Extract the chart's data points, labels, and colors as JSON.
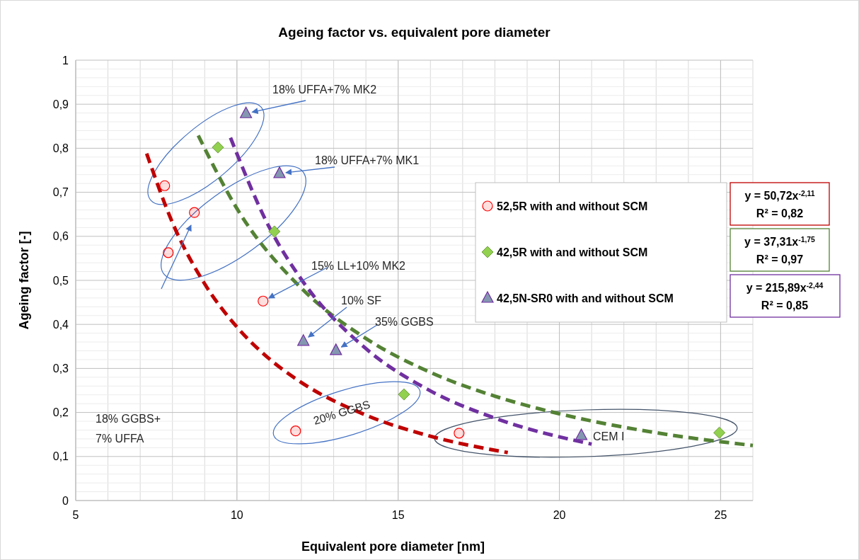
{
  "chart_data": {
    "type": "scatter",
    "title": "Ageing factor vs. equivalent pore diameter",
    "xlabel": "Equivalent pore diameter [nm]",
    "ylabel": "Ageing factor [-]",
    "xlim": [
      5,
      26
    ],
    "xticks": [
      5,
      10,
      15,
      20,
      25
    ],
    "ylim": [
      0,
      1
    ],
    "yticks": [
      0,
      {
        "value": 0.1,
        "label": "0,1"
      },
      {
        "value": 0.2,
        "label": "0,2"
      },
      {
        "value": 0.3,
        "label": "0,3"
      },
      {
        "value": 0.4,
        "label": "0,4"
      },
      {
        "value": 0.5,
        "label": "0,5"
      },
      {
        "value": 0.6,
        "label": "0,6"
      },
      {
        "value": 0.7,
        "label": "0,7"
      },
      {
        "value": 0.8,
        "label": "0,8"
      },
      {
        "value": 0.9,
        "label": "0,9"
      },
      1
    ],
    "grid": true,
    "legend": "right",
    "series": [
      {
        "name": "52,5R with and without SCM",
        "marker": "circle",
        "color": "#ff0000",
        "x": [
          7.76,
          7.87,
          8.68,
          10.81,
          11.82,
          16.89
        ],
        "values": [
          0.715,
          0.563,
          0.654,
          0.453,
          0.158,
          0.153
        ]
      },
      {
        "name": "42,5R with and without SCM",
        "marker": "diamond",
        "color": "#92d050",
        "x": [
          9.41,
          11.16,
          15.18,
          24.96
        ],
        "values": [
          0.802,
          0.611,
          0.241,
          0.154
        ]
      },
      {
        "name": "42,5N-SR0 with and without SCM",
        "marker": "triangle",
        "color": "#8497b0",
        "x": [
          10.28,
          11.32,
          12.06,
          13.07,
          20.68
        ],
        "values": [
          0.879,
          0.743,
          0.362,
          0.341,
          0.148
        ]
      },
      {
        "type": "line",
        "line_style": "dashed",
        "color": "#c00000",
        "x": [
          7.2,
          8,
          9,
          10,
          11,
          12,
          14,
          16,
          18.4
        ],
        "values": [
          0.788,
          0.631,
          0.492,
          0.394,
          0.322,
          0.268,
          0.194,
          0.146,
          0.109
        ]
      },
      {
        "type": "line",
        "line_style": "dashed",
        "color": "#548235",
        "x": [
          8.8,
          10,
          12,
          14,
          16,
          18,
          20,
          23,
          26
        ],
        "values": [
          0.829,
          0.663,
          0.482,
          0.368,
          0.291,
          0.237,
          0.197,
          0.154,
          0.125
        ]
      },
      {
        "type": "line",
        "line_style": "dashed",
        "color": "#7030a0",
        "x": [
          9.8,
          11,
          12,
          14,
          16,
          18,
          21
        ],
        "values": [
          0.824,
          0.621,
          0.502,
          0.345,
          0.249,
          0.187,
          0.128
        ]
      }
    ],
    "annotations": [
      "y = 50,72x$^{-2,11}$\nR² = 0,82",
      "y = 37,31x$^{-1,75}$\nR² = 0,97",
      "y = 215,89x$^{-2,44}$\nR² = 0,85",
      {
        "text": "18% UFFA+7% MK2",
        "x": 10.28,
        "y": 0.879
      },
      {
        "text": "18% UFFA+7% MK1",
        "x": 11.32,
        "y": 0.743
      },
      "18% GGBS+\n7% UFFA",
      {
        "text": "15% LL+10% MK2",
        "x": 10.81,
        "y": 0.453
      },
      {
        "text": "10% SF",
        "x": 12.06,
        "y": 0.362
      },
      {
        "text": "35% GGBS",
        "x": 13.07,
        "y": 0.341
      },
      "20% GGBS",
      "CEM I"
    ]
  }
}
